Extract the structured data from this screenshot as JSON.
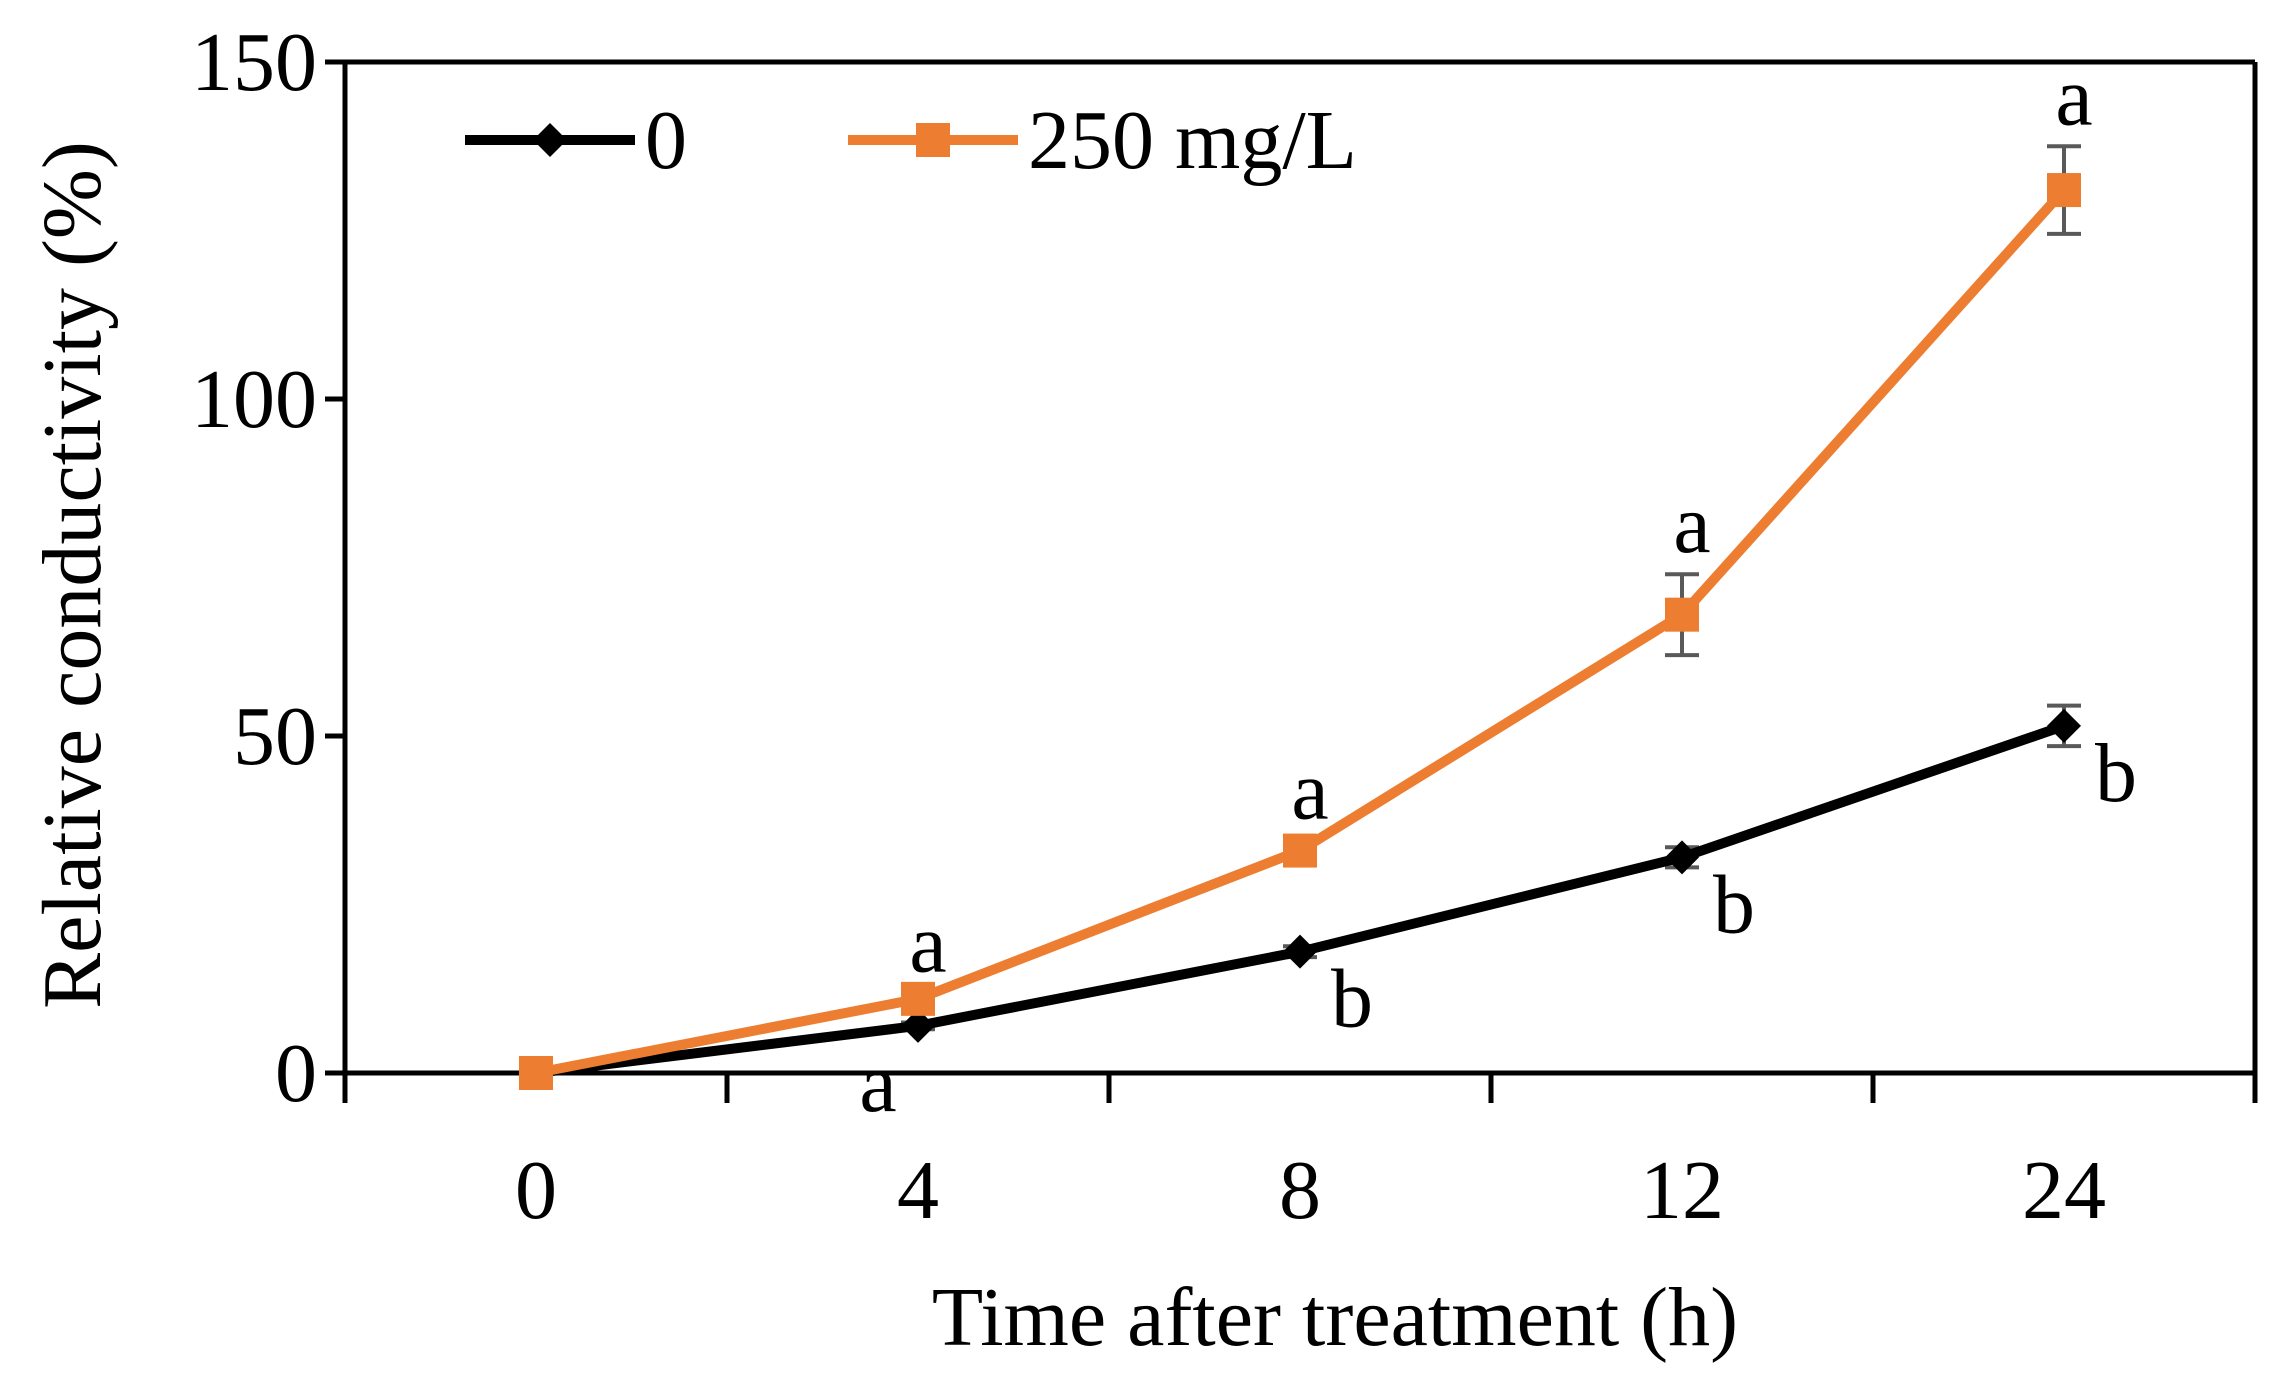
{
  "chart_data": {
    "type": "line",
    "title": "",
    "xlabel": "Time after treatment (h)",
    "ylabel": "Relative conductivity (%)",
    "categories": [
      "0",
      "4",
      "8",
      "12",
      "24"
    ],
    "ylim": [
      0,
      150
    ],
    "yticks": [
      0,
      50,
      100,
      150
    ],
    "grid": false,
    "legend_position": "top-left",
    "series": [
      {
        "name": "0",
        "color": "#000000",
        "marker": "diamond",
        "values": [
          0,
          7,
          18,
          32,
          51.5
        ],
        "errors": [
          0,
          0.5,
          0.8,
          1.5,
          3
        ],
        "letters": [
          "",
          "a",
          "b",
          "b",
          "b"
        ]
      },
      {
        "name": "250 mg/L",
        "color": "#ED7D31",
        "marker": "square",
        "values": [
          0,
          11,
          33,
          68,
          131
        ],
        "errors": [
          0,
          0.8,
          1.5,
          6,
          6.5
        ],
        "letters": [
          "",
          "a",
          "a",
          "a",
          "a"
        ]
      }
    ]
  }
}
